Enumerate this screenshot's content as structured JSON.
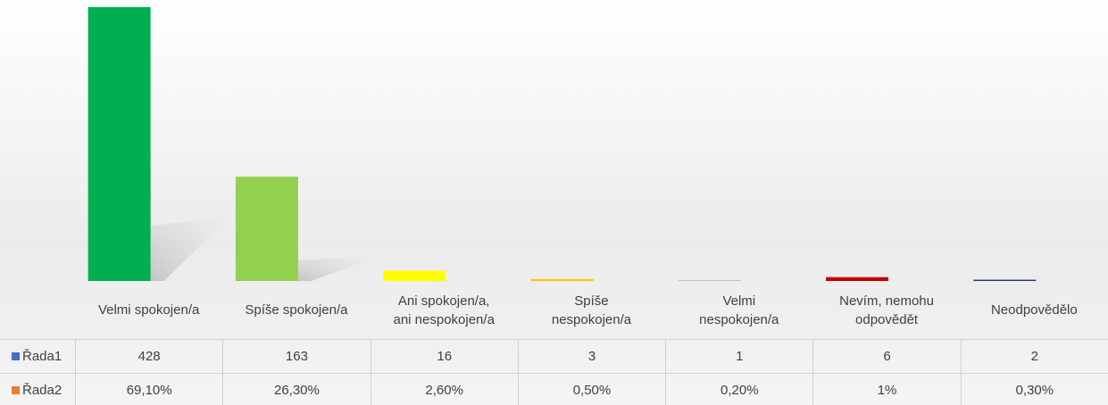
{
  "chart_data": {
    "type": "bar",
    "categories": [
      "Velmi spokojen/a",
      "Spíše spokojen/a",
      "Ani spokojen/a, ani nespokojen/a",
      "Spíše nespokojen/a",
      "Velmi nespokojen/a",
      "Nevím, nemohu odpovědět",
      "Neodpovědělo"
    ],
    "colors": [
      "#00b050",
      "#92d050",
      "#ffff00",
      "#ffc000",
      "#8eb4e3",
      "#c00000",
      "#203864"
    ],
    "series": [
      {
        "name": "Řada1",
        "color": "#4472c4",
        "values": [
          428,
          163,
          16,
          3,
          1,
          6,
          2
        ]
      },
      {
        "name": "Řada2",
        "color": "#ed7d31",
        "values": [
          69.1,
          26.3,
          2.6,
          0.5,
          0.2,
          1,
          0.3
        ],
        "value_labels": [
          "69,10%",
          "26,30%",
          "2,60%",
          "0,50%",
          "0,20%",
          "1%",
          "0,30%"
        ]
      }
    ]
  }
}
